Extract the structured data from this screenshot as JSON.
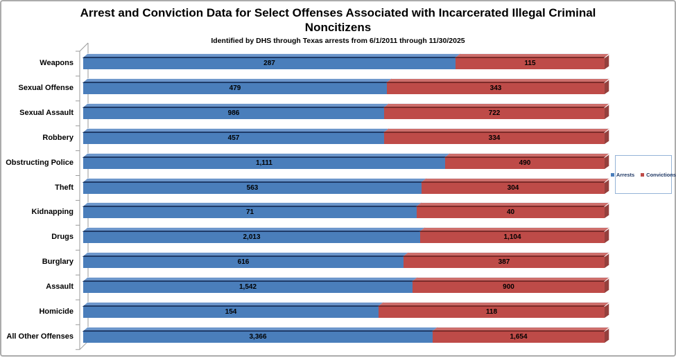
{
  "title": {
    "line1": "Arrest and Conviction Data for Select Offenses Associated with Incarcerated Illegal Criminal",
    "line2": "Noncitizens",
    "subtitle": "Identified by DHS through Texas arrests from 6/1/2011 through 11/30/2025"
  },
  "legend": {
    "items": [
      {
        "label": "Arrests",
        "color": "#4a7ebb"
      },
      {
        "label": "Convictions",
        "color": "#be4b48"
      }
    ]
  },
  "chart_data": {
    "type": "bar",
    "variant": "horizontal-100%-stacked-3d",
    "title": "Arrest and Conviction Data for Select Offenses Associated with Incarcerated Illegal Criminal Noncitizens",
    "subtitle": "Identified by DHS through Texas arrests from 6/1/2011 through 11/30/2025",
    "categories": [
      "Weapons",
      "Sexual Offense",
      "Sexual Assault",
      "Robbery",
      "Obstructing Police",
      "Theft",
      "Kidnapping",
      "Drugs",
      "Burglary",
      "Assault",
      "Homicide",
      "All Other Offenses"
    ],
    "series": [
      {
        "name": "Arrests",
        "values": [
          287,
          479,
          986,
          457,
          1111,
          563,
          71,
          2013,
          616,
          1542,
          154,
          3366
        ]
      },
      {
        "name": "Convictions",
        "values": [
          115,
          343,
          722,
          334,
          490,
          304,
          40,
          1104,
          387,
          900,
          118,
          1654
        ]
      }
    ],
    "value_labels": {
      "arrests": [
        "287",
        "479",
        "986",
        "457",
        "1,111",
        "563",
        "71",
        "2,013",
        "616",
        "1,542",
        "154",
        "3,366"
      ],
      "convictions": [
        "115",
        "343",
        "722",
        "334",
        "490",
        "304",
        "40",
        "1,104",
        "387",
        "900",
        "118",
        "1,654"
      ]
    },
    "legend_position": "right",
    "grid": false,
    "colors": {
      "arrests_front": "#4a7ebb",
      "arrests_top": "#6c96cb",
      "arrests_dark": "#1f3b68",
      "convictions_front": "#be4b48",
      "convictions_top": "#cd6e6b",
      "convictions_dark": "#7c2b29",
      "convictions_side": "#94403d",
      "axis_line": "#9a9a9a",
      "legend_border": "#95b3d7",
      "page_border": "#ababab"
    }
  }
}
